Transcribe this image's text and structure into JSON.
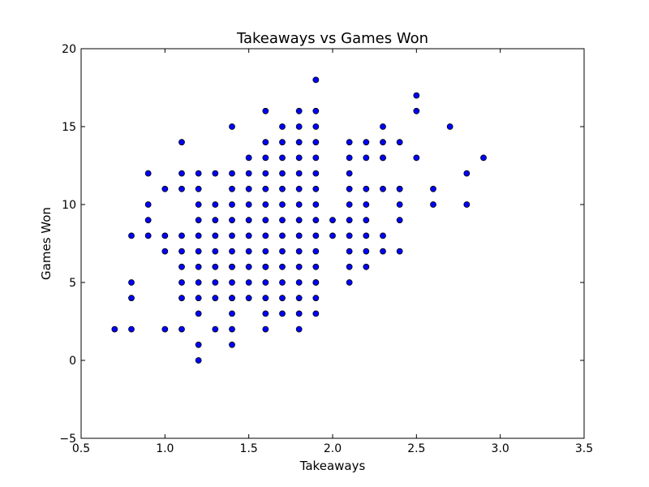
{
  "chart_data": {
    "type": "scatter",
    "title": "Takeaways vs Games Won",
    "xlabel": "Takeaways",
    "ylabel": "Games Won",
    "xlim": [
      0.5,
      3.5
    ],
    "ylim": [
      -5,
      20
    ],
    "xticks": [
      "0.5",
      "1.0",
      "1.5",
      "2.0",
      "2.5",
      "3.0",
      "3.5"
    ],
    "yticks": [
      "−5",
      "0",
      "5",
      "10",
      "15",
      "20"
    ],
    "grid": false,
    "marker_color": "#0000ff",
    "x": [
      0.7,
      0.8,
      0.8,
      0.8,
      0.8,
      0.9,
      0.9,
      0.9,
      0.9,
      1.0,
      1.0,
      1.0,
      1.0,
      1.1,
      1.1,
      1.1,
      1.1,
      1.1,
      1.1,
      1.1,
      1.1,
      1.1,
      1.2,
      1.2,
      1.2,
      1.2,
      1.2,
      1.2,
      1.2,
      1.2,
      1.2,
      1.2,
      1.2,
      1.2,
      1.3,
      1.3,
      1.3,
      1.3,
      1.3,
      1.3,
      1.3,
      1.3,
      1.3,
      1.4,
      1.4,
      1.4,
      1.4,
      1.4,
      1.4,
      1.4,
      1.4,
      1.4,
      1.4,
      1.4,
      1.4,
      1.4,
      1.4,
      1.4,
      1.5,
      1.5,
      1.5,
      1.5,
      1.5,
      1.5,
      1.5,
      1.5,
      1.5,
      1.5,
      1.6,
      1.6,
      1.6,
      1.6,
      1.6,
      1.6,
      1.6,
      1.6,
      1.6,
      1.6,
      1.6,
      1.6,
      1.6,
      1.6,
      1.6,
      1.7,
      1.7,
      1.7,
      1.7,
      1.7,
      1.7,
      1.7,
      1.7,
      1.7,
      1.7,
      1.7,
      1.7,
      1.7,
      1.8,
      1.8,
      1.8,
      1.8,
      1.8,
      1.8,
      1.8,
      1.8,
      1.8,
      1.8,
      1.8,
      1.8,
      1.8,
      1.8,
      1.8,
      1.9,
      1.9,
      1.9,
      1.9,
      1.9,
      1.9,
      1.9,
      1.9,
      1.9,
      1.9,
      1.9,
      1.9,
      1.9,
      1.9,
      1.9,
      1.9,
      2.0,
      2.0,
      2.1,
      2.1,
      2.1,
      2.1,
      2.1,
      2.1,
      2.1,
      2.1,
      2.1,
      2.1,
      2.2,
      2.2,
      2.2,
      2.2,
      2.2,
      2.2,
      2.2,
      2.2,
      2.3,
      2.3,
      2.3,
      2.3,
      2.3,
      2.3,
      2.3,
      2.4,
      2.4,
      2.4,
      2.4,
      2.4,
      2.4,
      2.5,
      2.5,
      2.5,
      2.6,
      2.6,
      2.7,
      2.8,
      2.8,
      2.9
    ],
    "y": [
      2,
      2,
      4,
      5,
      8,
      8,
      9,
      10,
      12,
      2,
      7,
      8,
      11,
      2,
      4,
      5,
      6,
      7,
      8,
      11,
      12,
      14,
      0,
      1,
      3,
      4,
      5,
      6,
      7,
      8,
      9,
      10,
      11,
      12,
      2,
      4,
      5,
      6,
      7,
      8,
      9,
      10,
      12,
      1,
      2,
      3,
      4,
      5,
      6,
      7,
      8,
      9,
      10,
      11,
      12,
      15,
      4,
      6,
      4,
      5,
      6,
      7,
      8,
      9,
      10,
      11,
      12,
      13,
      2,
      3,
      4,
      5,
      6,
      7,
      8,
      9,
      10,
      11,
      12,
      13,
      14,
      16,
      6,
      3,
      4,
      5,
      6,
      7,
      8,
      9,
      10,
      11,
      12,
      13,
      14,
      15,
      2,
      3,
      4,
      5,
      6,
      7,
      8,
      9,
      10,
      11,
      12,
      13,
      14,
      15,
      16,
      3,
      4,
      5,
      6,
      7,
      8,
      9,
      10,
      11,
      12,
      13,
      14,
      15,
      16,
      18,
      5,
      8,
      9,
      5,
      6,
      7,
      8,
      9,
      10,
      11,
      12,
      13,
      14,
      6,
      7,
      8,
      9,
      10,
      11,
      13,
      14,
      7,
      8,
      11,
      13,
      14,
      15,
      13,
      7,
      9,
      10,
      11,
      14,
      11,
      13,
      16,
      17,
      10,
      11,
      15,
      10,
      12,
      13
    ]
  }
}
